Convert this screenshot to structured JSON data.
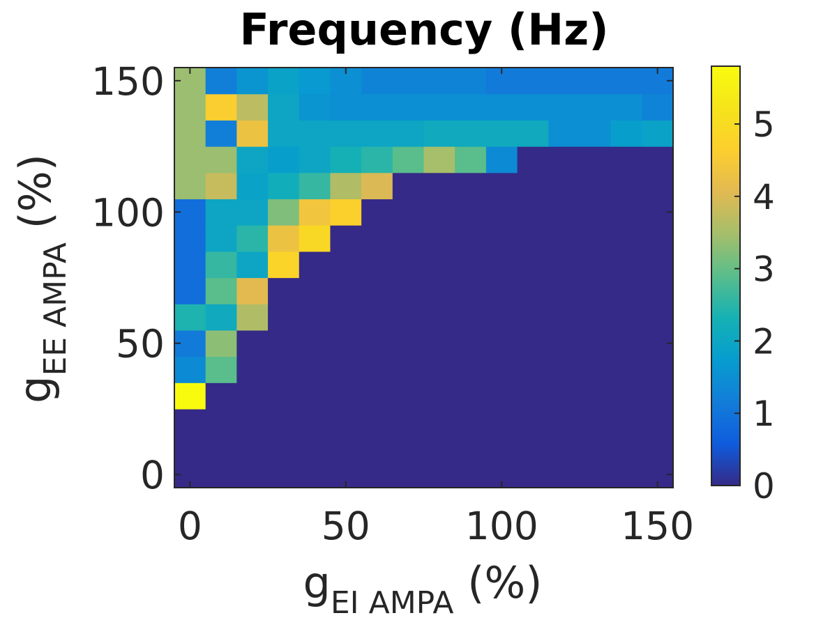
{
  "chart_data": {
    "type": "heatmap",
    "title": "Frequency (Hz)",
    "xlabel": {
      "base": "g",
      "sub": "EI AMPA",
      "unit": " (%)"
    },
    "ylabel": {
      "base": "g",
      "sub": "EE AMPA",
      "unit": " (%)"
    },
    "x": [
      0,
      10,
      20,
      30,
      40,
      50,
      60,
      70,
      80,
      90,
      100,
      110,
      120,
      130,
      140,
      150
    ],
    "y": [
      0,
      10,
      20,
      30,
      40,
      50,
      60,
      70,
      80,
      90,
      100,
      110,
      120,
      130,
      140,
      150
    ],
    "xlim": [
      -5,
      155
    ],
    "ylim": [
      -5,
      155
    ],
    "x_ticks": [
      "0",
      "50",
      "100",
      "150"
    ],
    "y_ticks": [
      "0",
      "50",
      "100",
      "150"
    ],
    "x_tick_values": [
      0,
      50,
      100,
      150
    ],
    "y_tick_values": [
      0,
      50,
      100,
      150
    ],
    "colorbar": {
      "range": [
        0,
        5.8
      ],
      "ticks": [
        "0",
        "1",
        "2",
        "3",
        "4",
        "5"
      ],
      "tick_values": [
        0,
        1,
        2,
        3,
        4,
        5
      ],
      "colormap": "parula"
    },
    "values": [
      [
        0,
        0,
        0,
        0,
        0,
        0,
        0,
        0,
        0,
        0,
        0,
        0,
        0,
        0,
        0,
        0
      ],
      [
        0,
        0,
        0,
        0,
        0,
        0,
        0,
        0,
        0,
        0,
        0,
        0,
        0,
        0,
        0,
        0
      ],
      [
        0,
        0,
        0,
        0,
        0,
        0,
        0,
        0,
        0,
        0,
        0,
        0,
        0,
        0,
        0,
        0
      ],
      [
        5.8,
        0,
        0,
        0,
        0,
        0,
        0,
        0,
        0,
        0,
        0,
        0,
        0,
        0,
        0,
        0
      ],
      [
        1.4,
        2.9,
        0,
        0,
        0,
        0,
        0,
        0,
        0,
        0,
        0,
        0,
        0,
        0,
        0,
        0
      ],
      [
        1.1,
        3.3,
        0,
        0,
        0,
        0,
        0,
        0,
        0,
        0,
        0,
        0,
        0,
        0,
        0,
        0
      ],
      [
        2.4,
        2.1,
        3.6,
        0,
        0,
        0,
        0,
        0,
        0,
        0,
        0,
        0,
        0,
        0,
        0,
        0
      ],
      [
        0.9,
        2.9,
        4.1,
        0,
        0,
        0,
        0,
        0,
        0,
        0,
        0,
        0,
        0,
        0,
        0,
        0
      ],
      [
        0.9,
        2.6,
        2.0,
        4.8,
        0,
        0,
        0,
        0,
        0,
        0,
        0,
        0,
        0,
        0,
        0,
        0
      ],
      [
        0.9,
        2.0,
        2.5,
        4.3,
        4.9,
        0,
        0,
        0,
        0,
        0,
        0,
        0,
        0,
        0,
        0,
        0
      ],
      [
        0.9,
        2.0,
        2.0,
        3.2,
        4.4,
        4.7,
        0,
        0,
        0,
        0,
        0,
        0,
        0,
        0,
        0,
        0
      ],
      [
        3.4,
        3.8,
        1.9,
        2.2,
        2.6,
        3.6,
        4.0,
        0,
        0,
        0,
        0,
        0,
        0,
        0,
        0,
        0
      ],
      [
        3.4,
        3.4,
        2.0,
        1.8,
        2.0,
        2.3,
        2.5,
        2.9,
        3.5,
        2.9,
        1.4,
        0,
        0,
        0,
        0,
        0
      ],
      [
        3.4,
        1.2,
        4.3,
        2.0,
        2.0,
        2.0,
        2.0,
        2.0,
        2.1,
        2.1,
        2.1,
        2.1,
        1.5,
        1.5,
        1.8,
        1.9
      ],
      [
        3.4,
        4.6,
        3.7,
        2.0,
        1.6,
        1.5,
        1.5,
        1.5,
        1.5,
        1.5,
        1.5,
        1.5,
        1.5,
        1.5,
        1.5,
        1.3
      ],
      [
        3.4,
        1.2,
        1.6,
        1.9,
        1.7,
        1.5,
        1.3,
        1.3,
        1.3,
        1.3,
        1.1,
        1.1,
        1.1,
        1.1,
        1.1,
        1.1
      ]
    ]
  }
}
